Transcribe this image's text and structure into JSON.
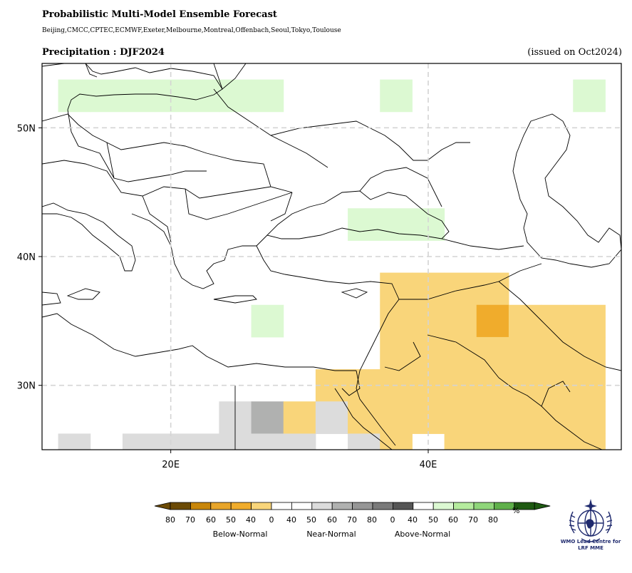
{
  "header": {
    "title": "Probabilistic Multi-Model Ensemble Forecast",
    "models": "Beijing,CMCC,CPTEC,ECMWF,Exeter,Melbourne,Montreal,Offenbach,Seoul,Tokyo,Toulouse",
    "subtitle": "Precipitation : DJF2024",
    "issued": "(issued on Oct2024)"
  },
  "map": {
    "lon_range": [
      10,
      55
    ],
    "lat_range": [
      25,
      55
    ],
    "x_ticks": [
      {
        "value": 20,
        "label": "20E"
      },
      {
        "value": 40,
        "label": "40E"
      }
    ],
    "y_ticks": [
      {
        "value": 30,
        "label": "30N"
      },
      {
        "value": 40,
        "label": "40N"
      },
      {
        "value": 50,
        "label": "50N"
      }
    ],
    "grid": "dashed",
    "cell_size_deg": 2.5,
    "cells": [
      {
        "lon": 12.5,
        "lat": 52.5,
        "cat": "above40"
      },
      {
        "lon": 15.0,
        "lat": 52.5,
        "cat": "above40"
      },
      {
        "lon": 17.5,
        "lat": 52.5,
        "cat": "above40"
      },
      {
        "lon": 20.0,
        "lat": 52.5,
        "cat": "above40"
      },
      {
        "lon": 22.5,
        "lat": 52.5,
        "cat": "above40"
      },
      {
        "lon": 25.0,
        "lat": 52.5,
        "cat": "above40"
      },
      {
        "lon": 27.5,
        "lat": 52.5,
        "cat": "above40"
      },
      {
        "lon": 37.5,
        "lat": 52.5,
        "cat": "above40"
      },
      {
        "lon": 52.5,
        "lat": 52.5,
        "cat": "above40"
      },
      {
        "lon": 35.0,
        "lat": 42.5,
        "cat": "above40"
      },
      {
        "lon": 37.5,
        "lat": 42.5,
        "cat": "above40"
      },
      {
        "lon": 40.0,
        "lat": 42.5,
        "cat": "above40"
      },
      {
        "lon": 27.5,
        "lat": 35.0,
        "cat": "above40"
      },
      {
        "lon": 37.5,
        "lat": 37.5,
        "cat": "below40"
      },
      {
        "lon": 40.0,
        "lat": 37.5,
        "cat": "below40"
      },
      {
        "lon": 42.5,
        "lat": 37.5,
        "cat": "below40"
      },
      {
        "lon": 45.0,
        "lat": 37.5,
        "cat": "below40"
      },
      {
        "lon": 37.5,
        "lat": 35.0,
        "cat": "below40"
      },
      {
        "lon": 40.0,
        "lat": 35.0,
        "cat": "below40"
      },
      {
        "lon": 42.5,
        "lat": 35.0,
        "cat": "below40"
      },
      {
        "lon": 45.0,
        "lat": 35.0,
        "cat": "below50"
      },
      {
        "lon": 47.5,
        "lat": 35.0,
        "cat": "below40"
      },
      {
        "lon": 50.0,
        "lat": 35.0,
        "cat": "below40"
      },
      {
        "lon": 52.5,
        "lat": 35.0,
        "cat": "below40"
      },
      {
        "lon": 37.5,
        "lat": 32.5,
        "cat": "below40"
      },
      {
        "lon": 40.0,
        "lat": 32.5,
        "cat": "below40"
      },
      {
        "lon": 42.5,
        "lat": 32.5,
        "cat": "below40"
      },
      {
        "lon": 45.0,
        "lat": 32.5,
        "cat": "below40"
      },
      {
        "lon": 47.5,
        "lat": 32.5,
        "cat": "below40"
      },
      {
        "lon": 50.0,
        "lat": 32.5,
        "cat": "below40"
      },
      {
        "lon": 52.5,
        "lat": 32.5,
        "cat": "below40"
      },
      {
        "lon": 32.5,
        "lat": 30.0,
        "cat": "below40"
      },
      {
        "lon": 35.0,
        "lat": 30.0,
        "cat": "below40"
      },
      {
        "lon": 37.5,
        "lat": 30.0,
        "cat": "below40"
      },
      {
        "lon": 40.0,
        "lat": 30.0,
        "cat": "below40"
      },
      {
        "lon": 42.5,
        "lat": 30.0,
        "cat": "below40"
      },
      {
        "lon": 45.0,
        "lat": 30.0,
        "cat": "below40"
      },
      {
        "lon": 47.5,
        "lat": 30.0,
        "cat": "below40"
      },
      {
        "lon": 50.0,
        "lat": 30.0,
        "cat": "below40"
      },
      {
        "lon": 52.5,
        "lat": 30.0,
        "cat": "below40"
      },
      {
        "lon": 25.0,
        "lat": 27.5,
        "cat": "near40"
      },
      {
        "lon": 27.5,
        "lat": 27.5,
        "cat": "near50"
      },
      {
        "lon": 30.0,
        "lat": 27.5,
        "cat": "below40"
      },
      {
        "lon": 32.5,
        "lat": 27.5,
        "cat": "near40"
      },
      {
        "lon": 35.0,
        "lat": 27.5,
        "cat": "below40"
      },
      {
        "lon": 37.5,
        "lat": 27.5,
        "cat": "below40"
      },
      {
        "lon": 40.0,
        "lat": 27.5,
        "cat": "below40"
      },
      {
        "lon": 42.5,
        "lat": 27.5,
        "cat": "below40"
      },
      {
        "lon": 45.0,
        "lat": 27.5,
        "cat": "below40"
      },
      {
        "lon": 47.5,
        "lat": 27.5,
        "cat": "below40"
      },
      {
        "lon": 50.0,
        "lat": 27.5,
        "cat": "below40"
      },
      {
        "lon": 52.5,
        "lat": 27.5,
        "cat": "below40"
      },
      {
        "lon": 12.5,
        "lat": 25.0,
        "cat": "near40"
      },
      {
        "lon": 17.5,
        "lat": 25.0,
        "cat": "near40"
      },
      {
        "lon": 20.0,
        "lat": 25.0,
        "cat": "near40"
      },
      {
        "lon": 22.5,
        "lat": 25.0,
        "cat": "near40"
      },
      {
        "lon": 25.0,
        "lat": 25.0,
        "cat": "near40"
      },
      {
        "lon": 27.5,
        "lat": 25.0,
        "cat": "near40"
      },
      {
        "lon": 30.0,
        "lat": 25.0,
        "cat": "near40"
      },
      {
        "lon": 35.0,
        "lat": 25.0,
        "cat": "near40"
      },
      {
        "lon": 37.5,
        "lat": 25.0,
        "cat": "below40"
      },
      {
        "lon": 42.5,
        "lat": 25.0,
        "cat": "below40"
      },
      {
        "lon": 45.0,
        "lat": 25.0,
        "cat": "below40"
      },
      {
        "lon": 47.5,
        "lat": 25.0,
        "cat": "below40"
      },
      {
        "lon": 50.0,
        "lat": 25.0,
        "cat": "below40"
      },
      {
        "lon": 52.5,
        "lat": 25.0,
        "cat": "below40"
      }
    ]
  },
  "colors": {
    "below80": "#6b4a05",
    "below70": "#c8860a",
    "below60": "#e8a52a",
    "below50": "#f0ac2c",
    "below40": "#f9d57a",
    "near40": "#dcdcdc",
    "near50": "#b0b1b0",
    "near60": "#969696",
    "near70": "#7a7a7a",
    "near80": "#555555",
    "above40": "#dcf9d2",
    "above50": "#b5ec9e",
    "above60": "#8fd67a",
    "above70": "#5fb04a",
    "above80": "#1f5a12",
    "land_line": "#000000"
  },
  "legend": {
    "unit": "%",
    "labels": [
      "80",
      "70",
      "60",
      "50",
      "40",
      "0",
      "40",
      "50",
      "60",
      "70",
      "80",
      "0",
      "40",
      "50",
      "60",
      "70",
      "80"
    ],
    "swatches": [
      "below80",
      "below70",
      "below60",
      "below50",
      "below40",
      "white",
      "white",
      "near40",
      "near50",
      "near60",
      "near70",
      "near80",
      "white",
      "above40",
      "above50",
      "above60",
      "above70",
      "above80"
    ],
    "categories": [
      "Below-Normal",
      "Near-Normal",
      "Above-Normal"
    ]
  },
  "logo": {
    "line1": "WMO Lead Centre for",
    "line2": "LRF MME"
  }
}
